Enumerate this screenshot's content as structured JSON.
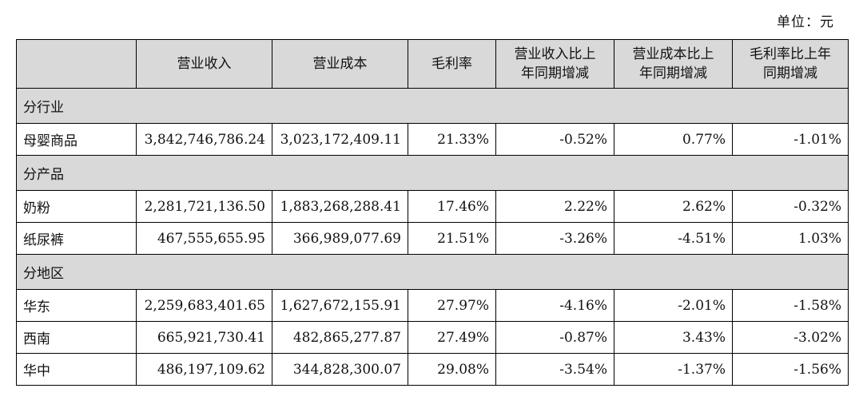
{
  "unit": "单位：元",
  "header": {
    "corner": "",
    "columns": [
      [
        "营业收入"
      ],
      [
        "营业成本"
      ],
      [
        "毛利率"
      ],
      [
        "营业收入比上",
        "年同期增减"
      ],
      [
        "营业成本比上",
        "年同期增减"
      ],
      [
        "毛利率比上年",
        "同期增减"
      ]
    ]
  },
  "sections": [
    {
      "title": "分行业",
      "rows": [
        {
          "name": "母婴商品",
          "values": [
            "3,842,746,786.24",
            "3,023,172,409.11",
            "21.33%",
            "-0.52%",
            "0.77%",
            "-1.01%"
          ]
        }
      ]
    },
    {
      "title": "分产品",
      "rows": [
        {
          "name": "奶粉",
          "values": [
            "2,281,721,136.50",
            "1,883,268,288.41",
            "17.46%",
            "2.22%",
            "2.62%",
            "-0.32%"
          ]
        },
        {
          "name": "纸尿裤",
          "values": [
            "467,555,655.95",
            "366,989,077.69",
            "21.51%",
            "-3.26%",
            "-4.51%",
            "1.03%"
          ]
        }
      ]
    },
    {
      "title": "分地区",
      "rows": [
        {
          "name": "华东",
          "values": [
            "2,259,683,401.65",
            "1,627,672,155.91",
            "27.97%",
            "-4.16%",
            "-2.01%",
            "-1.58%"
          ]
        },
        {
          "name": "西南",
          "values": [
            "665,921,730.41",
            "482,865,277.87",
            "27.49%",
            "-0.87%",
            "3.43%",
            "-3.02%"
          ]
        },
        {
          "name": "华中",
          "values": [
            "486,197,109.62",
            "344,828,300.07",
            "29.08%",
            "-3.54%",
            "-1.37%",
            "-1.56%"
          ]
        }
      ]
    }
  ]
}
